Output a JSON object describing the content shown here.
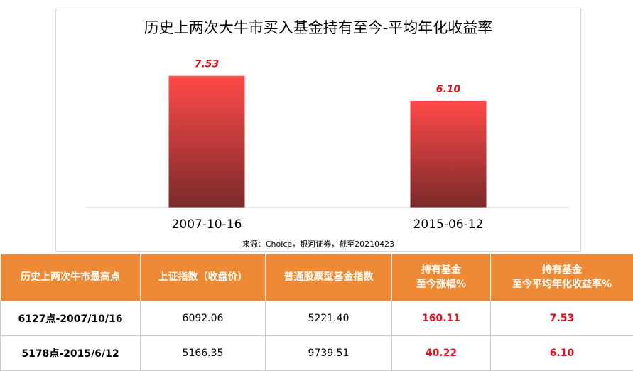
{
  "chart_data": {
    "type": "bar",
    "title": "历史上两次大牛市买入基金持有至今-平均年化收益率",
    "categories": [
      "2007-10-16",
      "2015-06-12"
    ],
    "values": [
      7.53,
      6.1
    ],
    "data_labels": [
      "7.53",
      "6.10"
    ],
    "ylim": [
      0,
      8.9
    ],
    "grid": false,
    "legend": "none",
    "bar_color_top": "#ff4a48",
    "bar_color_bottom": "#7a2a2a",
    "label_color": "#e0101a"
  },
  "source_note": "来源：Choice，银河证券，截至20210423",
  "table": {
    "headers": [
      "历史上两次牛市最高点",
      "上证指数（收盘价）",
      "普通股票型基金指数",
      "持有基金\n至今涨幅%",
      "持有基金\n至今平均年化收益率%"
    ],
    "rows": [
      [
        "6127点-2007/10/16",
        "6092.06",
        "5221.40",
        "160.11",
        "7.53"
      ],
      [
        "5178点-2015/6/12",
        "5166.35",
        "9739.51",
        "40.22",
        "6.10"
      ]
    ],
    "header_bg": "#ee8a35",
    "accent_color": "#e0101a"
  }
}
